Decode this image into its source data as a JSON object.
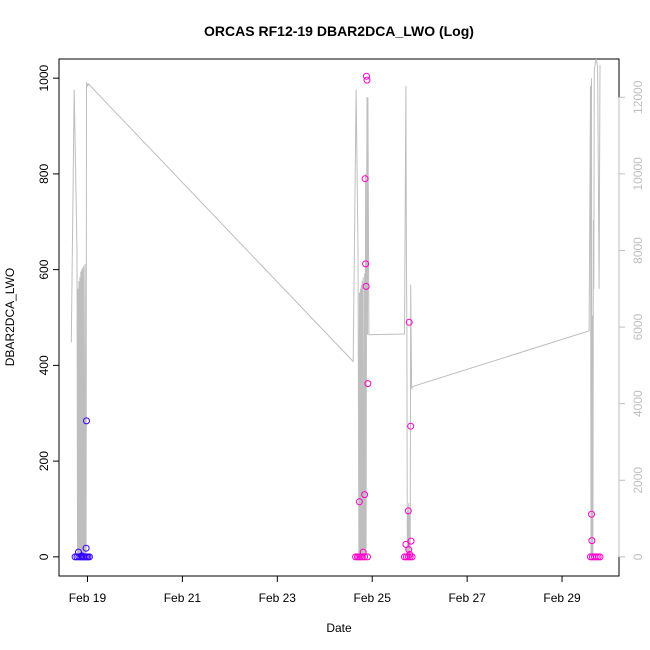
{
  "chart_data": {
    "type": "scatter",
    "title": "ORCAS RF12-19 DBAR2DCA_LWO (Log)",
    "xlabel": "Date",
    "ylabel": "DBAR2DCA_LWO",
    "x_ticks": [
      "Feb 19",
      "Feb 21",
      "Feb 23",
      "Feb 25",
      "Feb 27",
      "Feb 29"
    ],
    "x_tick_values": [
      19,
      21,
      23,
      25,
      27,
      29
    ],
    "xlim": [
      18.4,
      30.2
    ],
    "ylim": [
      -40,
      1040
    ],
    "y_ticks": [
      0,
      200,
      400,
      600,
      800,
      1000
    ],
    "y2lim": [
      -500,
      13000
    ],
    "y2_ticks": [
      0,
      2000,
      4000,
      6000,
      8000,
      10000,
      12000
    ],
    "colors": {
      "early": "#3300ff",
      "late": "#ff00cc",
      "mid": "#9900ff",
      "line": "#bebebe"
    },
    "points": [
      {
        "x": 18.74,
        "y": 0,
        "c": "early"
      },
      {
        "x": 18.78,
        "y": 0,
        "c": "early"
      },
      {
        "x": 18.82,
        "y": 0,
        "c": "early"
      },
      {
        "x": 18.86,
        "y": 0,
        "c": "early"
      },
      {
        "x": 18.89,
        "y": 0,
        "c": "early"
      },
      {
        "x": 18.92,
        "y": 0,
        "c": "early"
      },
      {
        "x": 18.95,
        "y": 0,
        "c": "early"
      },
      {
        "x": 18.98,
        "y": 0,
        "c": "early"
      },
      {
        "x": 19.01,
        "y": 0,
        "c": "early"
      },
      {
        "x": 19.04,
        "y": 0,
        "c": "early"
      },
      {
        "x": 18.81,
        "y": 10,
        "c": "early"
      },
      {
        "x": 18.88,
        "y": 2,
        "c": "early"
      },
      {
        "x": 18.97,
        "y": 18,
        "c": "early"
      },
      {
        "x": 18.98,
        "y": 284,
        "c": "early"
      },
      {
        "x": 24.65,
        "y": 0,
        "c": "late"
      },
      {
        "x": 24.69,
        "y": 0,
        "c": "late"
      },
      {
        "x": 24.72,
        "y": 0,
        "c": "late"
      },
      {
        "x": 24.75,
        "y": 0,
        "c": "late"
      },
      {
        "x": 24.79,
        "y": 0,
        "c": "late"
      },
      {
        "x": 24.84,
        "y": 0,
        "c": "late"
      },
      {
        "x": 24.9,
        "y": 0,
        "c": "late"
      },
      {
        "x": 24.73,
        "y": 115,
        "c": "late"
      },
      {
        "x": 24.81,
        "y": 10,
        "c": "late"
      },
      {
        "x": 24.84,
        "y": 130,
        "c": "late"
      },
      {
        "x": 24.85,
        "y": 790,
        "c": "late"
      },
      {
        "x": 24.86,
        "y": 612,
        "c": "late"
      },
      {
        "x": 24.87,
        "y": 565,
        "c": "late"
      },
      {
        "x": 24.88,
        "y": 1004,
        "c": "late"
      },
      {
        "x": 24.89,
        "y": 996,
        "c": "late"
      },
      {
        "x": 24.91,
        "y": 362,
        "c": "late"
      },
      {
        "x": 25.68,
        "y": 0,
        "c": "late"
      },
      {
        "x": 25.72,
        "y": 0,
        "c": "late"
      },
      {
        "x": 25.76,
        "y": 0,
        "c": "late"
      },
      {
        "x": 25.8,
        "y": 0,
        "c": "late"
      },
      {
        "x": 25.84,
        "y": 0,
        "c": "late"
      },
      {
        "x": 25.71,
        "y": 26,
        "c": "late"
      },
      {
        "x": 25.77,
        "y": 15,
        "c": "late"
      },
      {
        "x": 25.79,
        "y": 5,
        "c": "late"
      },
      {
        "x": 25.76,
        "y": 96,
        "c": "late"
      },
      {
        "x": 25.78,
        "y": 490,
        "c": "late"
      },
      {
        "x": 25.81,
        "y": 273,
        "c": "late"
      },
      {
        "x": 25.82,
        "y": 33,
        "c": "late"
      },
      {
        "x": 29.6,
        "y": 0,
        "c": "late"
      },
      {
        "x": 29.64,
        "y": 0,
        "c": "late"
      },
      {
        "x": 29.68,
        "y": 0,
        "c": "late"
      },
      {
        "x": 29.72,
        "y": 0,
        "c": "late"
      },
      {
        "x": 29.76,
        "y": 0,
        "c": "late"
      },
      {
        "x": 29.8,
        "y": 0,
        "c": "late"
      },
      {
        "x": 29.62,
        "y": 89,
        "c": "late"
      },
      {
        "x": 29.63,
        "y": 34,
        "c": "late"
      }
    ],
    "line_series": {
      "x": [
        18.66,
        18.72,
        18.78,
        18.79,
        18.8,
        18.81,
        18.82,
        18.83,
        18.84,
        18.85,
        18.86,
        18.87,
        18.88,
        18.89,
        18.9,
        18.91,
        18.92,
        18.93,
        18.94,
        18.95,
        18.96,
        18.97,
        18.98,
        19.0,
        19.02,
        24.6,
        24.66,
        24.7,
        24.72,
        24.73,
        24.74,
        24.75,
        24.76,
        24.77,
        24.78,
        24.79,
        24.8,
        24.81,
        24.82,
        24.83,
        24.84,
        24.85,
        24.86,
        24.87,
        24.88,
        24.89,
        24.9,
        24.91,
        24.92,
        24.93,
        25.68,
        25.71,
        25.72,
        25.73,
        25.74,
        25.75,
        25.76,
        25.77,
        25.78,
        25.79,
        25.8,
        25.81,
        25.82,
        25.83,
        25.84,
        25.86,
        29.57,
        29.6,
        29.61,
        29.62,
        29.63,
        29.64,
        29.65,
        29.66,
        29.67,
        29.68,
        29.7,
        29.72,
        29.75,
        29.78,
        29.8
      ],
      "y": [
        5600,
        12200,
        8000,
        0,
        7000,
        0,
        7200,
        0,
        7300,
        0,
        7450,
        0,
        7500,
        0,
        7550,
        0,
        7600,
        0,
        100,
        7650,
        0,
        200,
        12400,
        12300,
        12350,
        5100,
        12200,
        8000,
        0,
        6900,
        0,
        7000,
        0,
        7100,
        0,
        7200,
        0,
        7300,
        0,
        200,
        7400,
        0,
        10000,
        200,
        7500,
        12000,
        5800,
        12000,
        9000,
        5800,
        5820,
        12300,
        7800,
        5900,
        0,
        1200,
        0,
        1400,
        0,
        1100,
        0,
        7100,
        5900,
        4400,
        4420,
        4450,
        5900,
        12300,
        0,
        12500,
        0,
        6300,
        0,
        8800,
        7000,
        12700,
        12900,
        13000,
        12800,
        7000,
        12850
      ]
    }
  }
}
